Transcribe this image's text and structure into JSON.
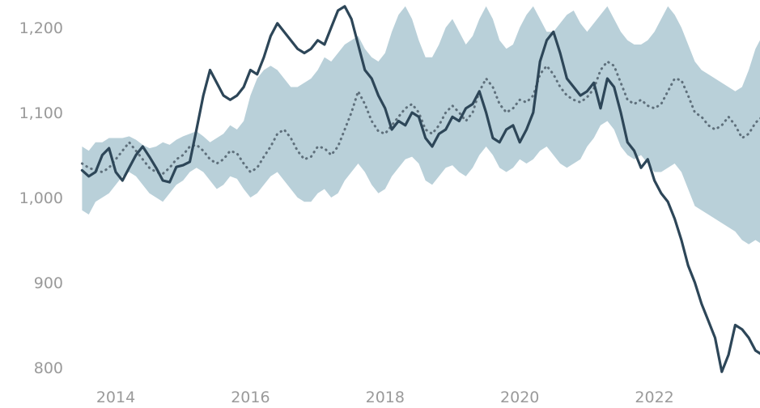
{
  "chart_data": {
    "type": "line",
    "title": "",
    "xlabel": "",
    "ylabel": "",
    "xlim": [
      2013.5,
      2023.8
    ],
    "ylim": [
      790,
      1230
    ],
    "grid": false,
    "legend": "none",
    "x_ticks": [
      2014,
      2016,
      2018,
      2020,
      2022
    ],
    "y_ticks": [
      800,
      900,
      1000,
      1100,
      1200
    ],
    "x_tick_labels": [
      "2014",
      "2016",
      "2018",
      "2020",
      "2022"
    ],
    "y_tick_labels": [
      "800",
      "900",
      "1,000",
      "1,100",
      "1,200"
    ],
    "colors": {
      "actual": "#2d4658",
      "expected": "#5f707c",
      "band": "#b9d0d9"
    },
    "series": [
      {
        "kind": "line",
        "style": "solid",
        "x": [
          2013.5,
          2013.6,
          2013.7,
          2013.8,
          2013.9,
          2014.0,
          2014.1,
          2014.2,
          2014.3,
          2014.4,
          2014.5,
          2014.6,
          2014.7,
          2014.8,
          2014.9,
          2015.0,
          2015.1,
          2015.2,
          2015.3,
          2015.4,
          2015.5,
          2015.6,
          2015.7,
          2015.8,
          2015.9,
          2016.0,
          2016.1,
          2016.2,
          2016.3,
          2016.4,
          2016.5,
          2016.6,
          2016.7,
          2016.8,
          2016.9,
          2017.0,
          2017.1,
          2017.2,
          2017.3,
          2017.4,
          2017.5,
          2017.6,
          2017.7,
          2017.8,
          2017.9,
          2018.0,
          2018.1,
          2018.2,
          2018.3,
          2018.4,
          2018.5,
          2018.6,
          2018.7,
          2018.8,
          2018.9,
          2019.0,
          2019.1,
          2019.2,
          2019.3,
          2019.4,
          2019.5,
          2019.6,
          2019.7,
          2019.8,
          2019.9,
          2020.0,
          2020.1,
          2020.2,
          2020.3,
          2020.4,
          2020.5,
          2020.6,
          2020.7,
          2020.8,
          2020.9,
          2021.0,
          2021.1,
          2021.2,
          2021.3,
          2021.4,
          2021.5,
          2021.6,
          2021.7,
          2021.8,
          2021.9,
          2022.0,
          2022.1,
          2022.2,
          2022.3,
          2022.4,
          2022.5,
          2022.6,
          2022.7,
          2022.8,
          2022.9,
          2023.0,
          2023.1,
          2023.2,
          2023.3,
          2023.4,
          2023.5,
          2023.6,
          2023.7,
          2023.75
        ],
        "values": [
          1032,
          1025,
          1030,
          1050,
          1058,
          1030,
          1020,
          1035,
          1050,
          1060,
          1048,
          1035,
          1020,
          1018,
          1036,
          1038,
          1042,
          1080,
          1120,
          1150,
          1135,
          1120,
          1115,
          1120,
          1130,
          1150,
          1145,
          1165,
          1190,
          1205,
          1195,
          1185,
          1175,
          1170,
          1175,
          1185,
          1180,
          1200,
          1220,
          1225,
          1210,
          1180,
          1150,
          1140,
          1120,
          1105,
          1080,
          1090,
          1085,
          1100,
          1095,
          1070,
          1060,
          1075,
          1080,
          1095,
          1090,
          1105,
          1110,
          1125,
          1100,
          1070,
          1065,
          1080,
          1085,
          1065,
          1080,
          1100,
          1160,
          1185,
          1195,
          1170,
          1140,
          1130,
          1120,
          1125,
          1135,
          1105,
          1140,
          1130,
          1100,
          1065,
          1055,
          1035,
          1045,
          1020,
          1005,
          995,
          975,
          950,
          920,
          900,
          875,
          855,
          835,
          795,
          815,
          850,
          845,
          835,
          820,
          815,
          808,
          805
        ]
      },
      {
        "kind": "line",
        "style": "dotted",
        "x": [
          2013.5,
          2013.6,
          2013.7,
          2013.8,
          2013.9,
          2014.0,
          2014.1,
          2014.2,
          2014.3,
          2014.4,
          2014.5,
          2014.6,
          2014.7,
          2014.8,
          2014.9,
          2015.0,
          2015.1,
          2015.2,
          2015.3,
          2015.4,
          2015.5,
          2015.6,
          2015.7,
          2015.8,
          2015.9,
          2016.0,
          2016.1,
          2016.2,
          2016.3,
          2016.4,
          2016.5,
          2016.6,
          2016.7,
          2016.8,
          2016.9,
          2017.0,
          2017.1,
          2017.2,
          2017.3,
          2017.4,
          2017.5,
          2017.6,
          2017.7,
          2017.8,
          2017.9,
          2018.0,
          2018.1,
          2018.2,
          2018.3,
          2018.4,
          2018.5,
          2018.6,
          2018.7,
          2018.8,
          2018.9,
          2019.0,
          2019.1,
          2019.2,
          2019.3,
          2019.4,
          2019.5,
          2019.6,
          2019.7,
          2019.8,
          2019.9,
          2020.0,
          2020.1,
          2020.2,
          2020.3,
          2020.4,
          2020.5,
          2020.6,
          2020.7,
          2020.8,
          2020.9,
          2021.0,
          2021.1,
          2021.2,
          2021.3,
          2021.4,
          2021.5,
          2021.6,
          2021.7,
          2021.8,
          2021.9,
          2022.0,
          2022.1,
          2022.2,
          2022.3,
          2022.4,
          2022.5,
          2022.6,
          2022.7,
          2022.8,
          2022.9,
          2023.0,
          2023.1,
          2023.2,
          2023.3,
          2023.4,
          2023.5,
          2023.6,
          2023.7,
          2023.75
        ],
        "values": [
          1040,
          1035,
          1032,
          1030,
          1035,
          1045,
          1055,
          1065,
          1055,
          1045,
          1035,
          1030,
          1028,
          1035,
          1045,
          1050,
          1060,
          1062,
          1055,
          1045,
          1040,
          1045,
          1055,
          1052,
          1040,
          1030,
          1035,
          1048,
          1060,
          1075,
          1080,
          1070,
          1055,
          1045,
          1048,
          1060,
          1058,
          1050,
          1060,
          1080,
          1100,
          1125,
          1110,
          1090,
          1078,
          1075,
          1085,
          1095,
          1105,
          1110,
          1100,
          1080,
          1075,
          1085,
          1100,
          1108,
          1100,
          1090,
          1100,
          1125,
          1140,
          1130,
          1110,
          1100,
          1105,
          1115,
          1112,
          1120,
          1145,
          1155,
          1145,
          1130,
          1120,
          1115,
          1112,
          1118,
          1128,
          1150,
          1160,
          1155,
          1135,
          1115,
          1110,
          1115,
          1108,
          1105,
          1110,
          1125,
          1140,
          1138,
          1120,
          1100,
          1095,
          1085,
          1080,
          1085,
          1095,
          1085,
          1070,
          1075,
          1088,
          1095,
          1082,
          1065
        ]
      }
    ],
    "band": {
      "x": [
        2013.5,
        2013.6,
        2013.7,
        2013.8,
        2013.9,
        2014.0,
        2014.1,
        2014.2,
        2014.3,
        2014.4,
        2014.5,
        2014.6,
        2014.7,
        2014.8,
        2014.9,
        2015.0,
        2015.1,
        2015.2,
        2015.3,
        2015.4,
        2015.5,
        2015.6,
        2015.7,
        2015.8,
        2015.9,
        2016.0,
        2016.1,
        2016.2,
        2016.3,
        2016.4,
        2016.5,
        2016.6,
        2016.7,
        2016.8,
        2016.9,
        2017.0,
        2017.1,
        2017.2,
        2017.3,
        2017.4,
        2017.5,
        2017.6,
        2017.7,
        2017.8,
        2017.9,
        2018.0,
        2018.1,
        2018.2,
        2018.3,
        2018.4,
        2018.5,
        2018.6,
        2018.7,
        2018.8,
        2018.9,
        2019.0,
        2019.1,
        2019.2,
        2019.3,
        2019.4,
        2019.5,
        2019.6,
        2019.7,
        2019.8,
        2019.9,
        2020.0,
        2020.1,
        2020.2,
        2020.3,
        2020.4,
        2020.5,
        2020.6,
        2020.7,
        2020.8,
        2020.9,
        2021.0,
        2021.1,
        2021.2,
        2021.3,
        2021.4,
        2021.5,
        2021.6,
        2021.7,
        2021.8,
        2021.9,
        2022.0,
        2022.1,
        2022.2,
        2022.3,
        2022.4,
        2022.5,
        2022.6,
        2022.7,
        2022.8,
        2022.9,
        2023.0,
        2023.1,
        2023.2,
        2023.3,
        2023.4,
        2023.5,
        2023.6,
        2023.7,
        2023.75
      ],
      "lower": [
        985,
        980,
        995,
        1000,
        1005,
        1015,
        1025,
        1030,
        1025,
        1015,
        1005,
        1000,
        995,
        1005,
        1015,
        1020,
        1030,
        1035,
        1030,
        1020,
        1010,
        1015,
        1025,
        1022,
        1010,
        1000,
        1005,
        1015,
        1025,
        1030,
        1020,
        1010,
        1000,
        995,
        995,
        1005,
        1010,
        1000,
        1005,
        1020,
        1030,
        1040,
        1030,
        1015,
        1005,
        1010,
        1025,
        1035,
        1045,
        1048,
        1040,
        1020,
        1015,
        1025,
        1035,
        1038,
        1030,
        1025,
        1035,
        1050,
        1060,
        1050,
        1035,
        1030,
        1035,
        1045,
        1040,
        1045,
        1055,
        1060,
        1050,
        1040,
        1035,
        1040,
        1045,
        1060,
        1070,
        1085,
        1090,
        1080,
        1060,
        1050,
        1045,
        1050,
        1040,
        1030,
        1030,
        1035,
        1040,
        1030,
        1010,
        990,
        985,
        980,
        975,
        970,
        965,
        960,
        950,
        945,
        950,
        945,
        935,
        915
      ],
      "upper": [
        1060,
        1055,
        1065,
        1065,
        1070,
        1070,
        1070,
        1072,
        1068,
        1062,
        1058,
        1060,
        1065,
        1062,
        1068,
        1072,
        1075,
        1078,
        1072,
        1065,
        1070,
        1075,
        1085,
        1080,
        1090,
        1120,
        1140,
        1150,
        1155,
        1150,
        1140,
        1130,
        1130,
        1135,
        1140,
        1150,
        1165,
        1160,
        1170,
        1180,
        1185,
        1190,
        1175,
        1165,
        1160,
        1170,
        1195,
        1215,
        1225,
        1210,
        1185,
        1165,
        1165,
        1180,
        1200,
        1210,
        1195,
        1180,
        1190,
        1210,
        1225,
        1210,
        1185,
        1175,
        1180,
        1200,
        1215,
        1225,
        1210,
        1195,
        1195,
        1205,
        1215,
        1220,
        1205,
        1195,
        1205,
        1215,
        1225,
        1210,
        1195,
        1185,
        1180,
        1180,
        1185,
        1195,
        1210,
        1225,
        1215,
        1200,
        1180,
        1160,
        1150,
        1145,
        1140,
        1135,
        1130,
        1125,
        1130,
        1150,
        1175,
        1190,
        1195,
        1180
      ]
    }
  }
}
